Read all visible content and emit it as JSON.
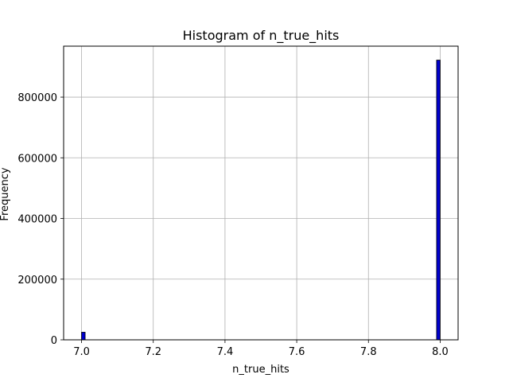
{
  "chart_data": {
    "type": "bar",
    "title": "Histogram of n_true_hits",
    "xlabel": "n_true_hits",
    "ylabel": "Frequency",
    "xlim": [
      6.95,
      8.05
    ],
    "ylim": [
      0,
      968000
    ],
    "x_ticks": [
      7.0,
      7.2,
      7.4,
      7.6,
      7.8,
      8.0
    ],
    "x_tick_labels": [
      "7.0",
      "7.2",
      "7.4",
      "7.6",
      "7.8",
      "8.0"
    ],
    "y_ticks": [
      0,
      200000,
      400000,
      600000,
      800000
    ],
    "y_tick_labels": [
      "0",
      "200000",
      "400000",
      "600000",
      "800000"
    ],
    "grid": true,
    "bin_width": 0.01,
    "bars": [
      {
        "x_start": 7.0,
        "x_end": 7.01,
        "value": 25000
      },
      {
        "x_start": 7.99,
        "x_end": 8.0,
        "value": 922000
      }
    ],
    "colors": {
      "bar_fill": "#0000cd",
      "bar_edge": "#000000",
      "grid": "#b0b0b0",
      "axes": "#000000"
    }
  }
}
